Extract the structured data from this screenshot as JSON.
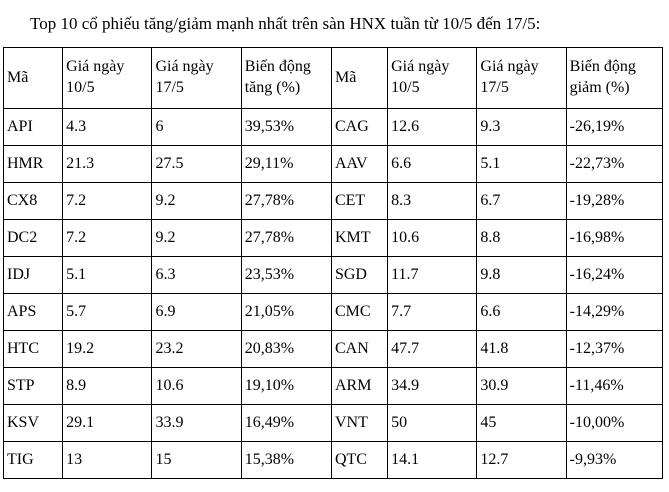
{
  "title": "Top 10 cổ phiếu tăng/giảm mạnh nhất trên sàn HNX tuần từ 10/5 đến 17/5:",
  "colors": {
    "background": "#ffffff",
    "text": "#000000",
    "table_border": "#000000"
  },
  "table": {
    "headers": [
      "Mã",
      "Giá ngày 10/5",
      "Giá ngày 17/5",
      "Biến động tăng (%)",
      "Mã",
      "Giá ngày 10/5",
      "Giá ngày 17/5",
      "Biến động giảm (%)"
    ],
    "rows": [
      [
        "API",
        "4.3",
        "6",
        "39,53%",
        "CAG",
        "12.6",
        "9.3",
        "-26,19%"
      ],
      [
        "HMR",
        "21.3",
        "27.5",
        "29,11%",
        "AAV",
        "6.6",
        "5.1",
        "-22,73%"
      ],
      [
        "CX8",
        "7.2",
        "9.2",
        "27,78%",
        "CET",
        "8.3",
        "6.7",
        "-19,28%"
      ],
      [
        "DC2",
        "7.2",
        "9.2",
        "27,78%",
        "KMT",
        "10.6",
        "8.8",
        "-16,98%"
      ],
      [
        "IDJ",
        "5.1",
        "6.3",
        "23,53%",
        "SGD",
        "11.7",
        "9.8",
        "-16,24%"
      ],
      [
        "APS",
        "5.7",
        "6.9",
        "21,05%",
        "CMC",
        "7.7",
        "6.6",
        "-14,29%"
      ],
      [
        "HTC",
        "19.2",
        "23.2",
        "20,83%",
        "CAN",
        "47.7",
        "41.8",
        "-12,37%"
      ],
      [
        "STP",
        "8.9",
        "10.6",
        "19,10%",
        "ARM",
        "34.9",
        "30.9",
        "-11,46%"
      ],
      [
        "KSV",
        "29.1",
        "33.9",
        "16,49%",
        "VNT",
        "50",
        "45",
        "-10,00%"
      ],
      [
        "TIG",
        "13",
        "15",
        "15,38%",
        "QTC",
        "14.1",
        "12.7",
        "-9,93%"
      ]
    ]
  },
  "chart_data": {
    "type": "table",
    "title": "Top 10 cổ phiếu tăng/giảm mạnh nhất trên sàn HNX tuần từ 10/5 đến 17/5",
    "gainers": {
      "columns": [
        "Mã",
        "Giá ngày 10/5",
        "Giá ngày 17/5",
        "Biến động tăng (%)"
      ],
      "codes": [
        "API",
        "HMR",
        "CX8",
        "DC2",
        "IDJ",
        "APS",
        "HTC",
        "STP",
        "KSV",
        "TIG"
      ],
      "price_10_5": [
        4.3,
        21.3,
        7.2,
        7.2,
        5.1,
        5.7,
        19.2,
        8.9,
        29.1,
        13
      ],
      "price_17_5": [
        6,
        27.5,
        9.2,
        9.2,
        6.3,
        6.9,
        23.2,
        10.6,
        33.9,
        15
      ],
      "change_pct": [
        39.53,
        29.11,
        27.78,
        27.78,
        23.53,
        21.05,
        20.83,
        19.1,
        16.49,
        15.38
      ]
    },
    "losers": {
      "columns": [
        "Mã",
        "Giá ngày 10/5",
        "Giá ngày 17/5",
        "Biến động giảm (%)"
      ],
      "codes": [
        "CAG",
        "AAV",
        "CET",
        "KMT",
        "SGD",
        "CMC",
        "CAN",
        "ARM",
        "VNT",
        "QTC"
      ],
      "price_10_5": [
        12.6,
        6.6,
        8.3,
        10.6,
        11.7,
        7.7,
        47.7,
        34.9,
        50,
        14.1
      ],
      "price_17_5": [
        9.3,
        5.1,
        6.7,
        8.8,
        9.8,
        6.6,
        41.8,
        30.9,
        45,
        12.7
      ],
      "change_pct": [
        -26.19,
        -22.73,
        -19.28,
        -16.98,
        -16.24,
        -14.29,
        -12.37,
        -11.46,
        -10.0,
        -9.93
      ]
    }
  }
}
